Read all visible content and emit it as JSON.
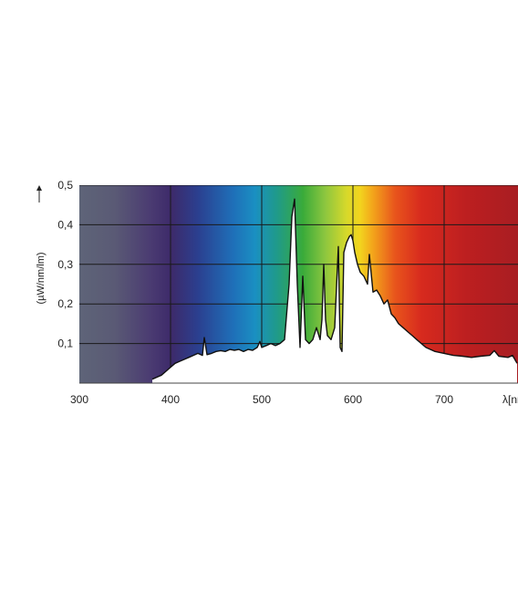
{
  "chart_data": {
    "type": "area",
    "title": "",
    "xlabel": "λ[nm]",
    "ylabel": "(µW/nm/lm)",
    "xlim": [
      300,
      780
    ],
    "ylim": [
      0,
      0.5
    ],
    "x_ticks": [
      300,
      400,
      500,
      600,
      700
    ],
    "x_tick_labels": [
      "300",
      "400",
      "500",
      "600",
      "700"
    ],
    "y_ticks": [
      0.1,
      0.2,
      0.3,
      0.4,
      0.5
    ],
    "y_tick_labels": [
      "0,1",
      "0,2",
      "0,3",
      "0,4",
      "0,5"
    ],
    "grid": true,
    "background": "visible spectrum color gradient",
    "series": [
      {
        "x": [
          380,
          385,
          390,
          395,
          400,
          405,
          410,
          415,
          420,
          425,
          430,
          435,
          437,
          440,
          445,
          450,
          455,
          460,
          465,
          470,
          475,
          480,
          485,
          490,
          495,
          498,
          500,
          505,
          510,
          515,
          520,
          525,
          530,
          533,
          536,
          539,
          542,
          545,
          548,
          552,
          556,
          560,
          564,
          566,
          568,
          570,
          572,
          576,
          580,
          584,
          586,
          588,
          590,
          593,
          596,
          598,
          600,
          602,
          605,
          608,
          612,
          616,
          618,
          622,
          626,
          630,
          634,
          638,
          642,
          646,
          650,
          655,
          660,
          665,
          670,
          675,
          680,
          685,
          690,
          700,
          710,
          720,
          730,
          740,
          750,
          755,
          760,
          770,
          775,
          780
        ],
        "values": [
          0.01,
          0.015,
          0.02,
          0.03,
          0.04,
          0.05,
          0.055,
          0.06,
          0.065,
          0.07,
          0.075,
          0.07,
          0.115,
          0.072,
          0.075,
          0.08,
          0.082,
          0.08,
          0.085,
          0.083,
          0.085,
          0.08,
          0.085,
          0.083,
          0.09,
          0.105,
          0.09,
          0.095,
          0.1,
          0.095,
          0.1,
          0.11,
          0.25,
          0.42,
          0.465,
          0.25,
          0.09,
          0.27,
          0.11,
          0.1,
          0.11,
          0.14,
          0.11,
          0.16,
          0.3,
          0.16,
          0.12,
          0.11,
          0.14,
          0.345,
          0.09,
          0.08,
          0.33,
          0.355,
          0.37,
          0.375,
          0.36,
          0.33,
          0.3,
          0.28,
          0.27,
          0.25,
          0.325,
          0.23,
          0.235,
          0.22,
          0.2,
          0.21,
          0.175,
          0.165,
          0.15,
          0.14,
          0.13,
          0.12,
          0.11,
          0.1,
          0.09,
          0.085,
          0.08,
          0.075,
          0.07,
          0.068,
          0.065,
          0.068,
          0.07,
          0.082,
          0.068,
          0.065,
          0.07,
          0.05
        ]
      }
    ]
  }
}
